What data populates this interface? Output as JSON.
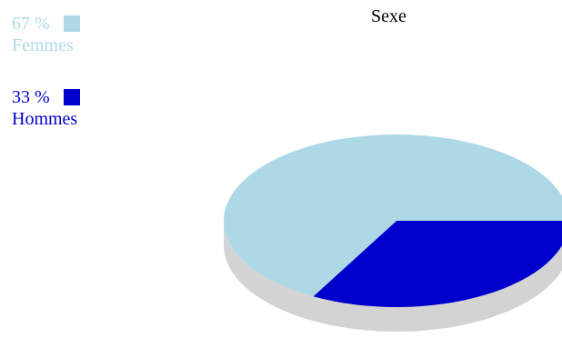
{
  "chart_data": {
    "type": "pie",
    "title": "Sexe",
    "legend_position": "top-left",
    "slices": [
      {
        "label": "Femmes",
        "value": 67,
        "percent_label": "67 %",
        "color": "#add8e6"
      },
      {
        "label": "Hommes",
        "value": 33,
        "percent_label": "33 %",
        "color": "#0000cd"
      }
    ],
    "side_color": "#d3d3d3",
    "style": "3d"
  }
}
